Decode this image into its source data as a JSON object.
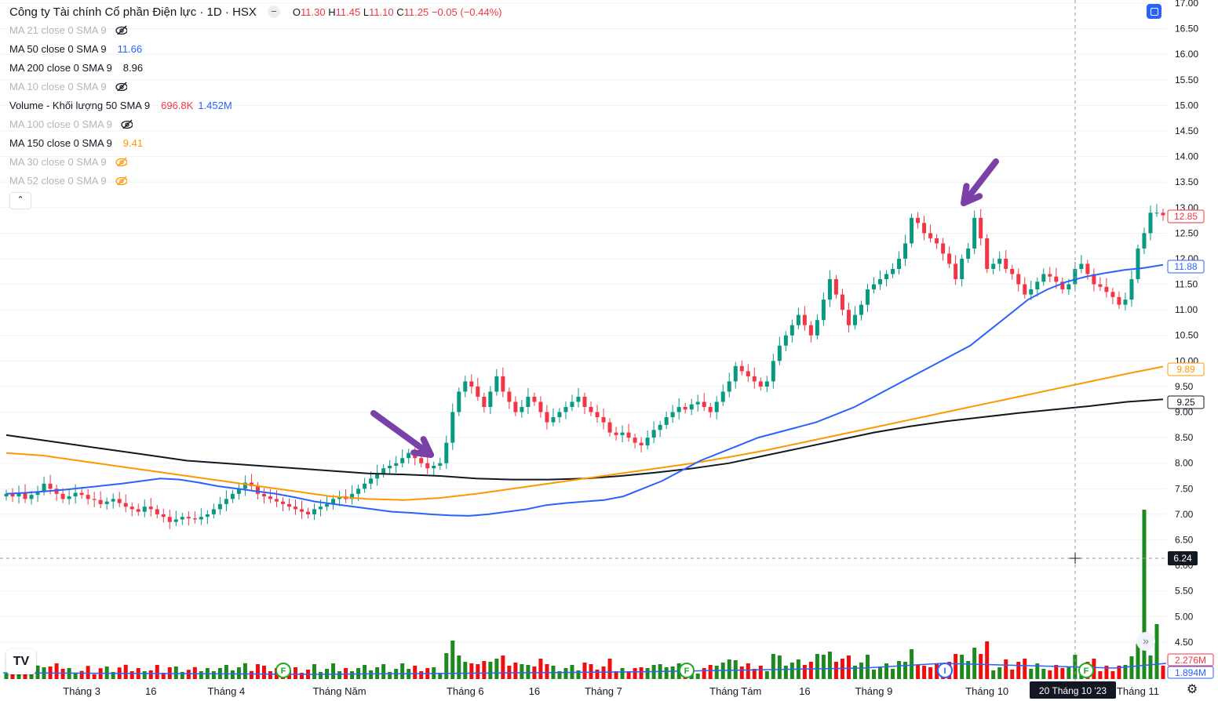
{
  "header": {
    "title": "Công ty Tài chính Cổ phần Điện lực · 1D · HSX",
    "ohlc": {
      "o_label": "O",
      "o": "11.30",
      "h_label": "H",
      "h": "11.45",
      "l_label": "L",
      "l": "11.10",
      "c_label": "C",
      "c": "11.25",
      "change": "−0.05 (−0.44%)"
    }
  },
  "legend": [
    {
      "label": "MA 21 close 0 SMA 9",
      "value": "",
      "hidden": true,
      "color": "#b2b5be"
    },
    {
      "label": "MA 50 close 0 SMA 9",
      "value": "11.66",
      "hidden": false,
      "color": "#2962ff"
    },
    {
      "label": "MA 200 close 0 SMA 9",
      "value": "8.96",
      "hidden": false,
      "color": "#131722"
    },
    {
      "label": "MA 10 close 0 SMA 9",
      "value": "",
      "hidden": true,
      "color": "#b2b5be"
    },
    {
      "label": "Volume - Khối lượng 50 SMA 9",
      "value": "696.8K",
      "value2": "1.452M",
      "hidden": false,
      "color": "#f23645",
      "color2": "#2962ff"
    },
    {
      "label": "MA 100 close 0 SMA 9",
      "value": "",
      "hidden": true,
      "color": "#b2b5be"
    },
    {
      "label": "MA 150 close 0 SMA 9",
      "value": "9.41",
      "hidden": false,
      "color": "#ff9800"
    },
    {
      "label": "MA 30 close 0 SMA 9",
      "value": "",
      "hidden": true,
      "color": "#ff9800"
    },
    {
      "label": "MA 52 close 0 SMA 9",
      "value": "",
      "hidden": true,
      "color": "#ff9800"
    }
  ],
  "crosshair": {
    "price_label": "6.24",
    "date_label": "20 Tháng 10 '23"
  },
  "price_badges": [
    {
      "value": "12.85",
      "color": "#f23645"
    },
    {
      "value": "11.88",
      "color": "#2962ff"
    },
    {
      "value": "9.89",
      "color": "#ff9800"
    },
    {
      "value": "9.25",
      "color": "#131722"
    }
  ],
  "volume_badges": [
    {
      "value": "2.276M",
      "color": "#f23645"
    },
    {
      "value": "1.894M",
      "color": "#2962ff"
    }
  ],
  "event_markers": [
    "F",
    "F",
    "I",
    "F"
  ],
  "chart_data": {
    "type": "candlestick",
    "title": "Công ty Tài chính Cổ phần Điện lực · 1D · HSX",
    "ylim": [
      3.9,
      17.0
    ],
    "y_ticks": [
      "17.00",
      "16.50",
      "16.00",
      "15.50",
      "15.00",
      "14.50",
      "14.00",
      "13.50",
      "13.00",
      "12.50",
      "12.00",
      "11.50",
      "11.00",
      "10.50",
      "10.00",
      "9.50",
      "9.00",
      "8.50",
      "8.00",
      "7.50",
      "7.00",
      "6.50",
      "6.00",
      "5.50",
      "5.00",
      "4.50"
    ],
    "x_ticks": [
      "Tháng 3",
      "16",
      "Tháng 4",
      "Tháng Năm",
      "Tháng 6",
      "16",
      "Tháng 7",
      "Tháng Tám",
      "16",
      "Tháng 9",
      "Tháng 10",
      "Tháng 11"
    ],
    "x_tick_index": [
      12,
      23,
      35,
      53,
      73,
      84,
      95,
      116,
      127,
      138,
      156,
      180
    ],
    "closes": [
      7.4,
      7.35,
      7.42,
      7.3,
      7.38,
      7.45,
      7.6,
      7.5,
      7.4,
      7.3,
      7.35,
      7.42,
      7.38,
      7.3,
      7.28,
      7.2,
      7.25,
      7.3,
      7.22,
      7.15,
      7.1,
      7.05,
      7.15,
      7.1,
      7.0,
      6.95,
      6.85,
      6.9,
      6.95,
      6.92,
      6.9,
      6.95,
      7.0,
      7.1,
      7.2,
      7.3,
      7.4,
      7.5,
      7.62,
      7.55,
      7.4,
      7.35,
      7.3,
      7.25,
      7.2,
      7.15,
      7.1,
      7.05,
      7.0,
      7.1,
      7.15,
      7.2,
      7.3,
      7.35,
      7.3,
      7.4,
      7.5,
      7.6,
      7.7,
      7.8,
      7.9,
      7.95,
      8.0,
      8.1,
      8.2,
      8.1,
      8.0,
      7.9,
      7.95,
      8.0,
      8.4,
      9.0,
      9.4,
      9.6,
      9.5,
      9.3,
      9.1,
      9.4,
      9.7,
      9.4,
      9.2,
      9.0,
      9.1,
      9.3,
      9.2,
      9.0,
      8.8,
      8.9,
      9.0,
      9.1,
      9.2,
      9.3,
      9.1,
      9.0,
      8.9,
      8.8,
      8.6,
      8.55,
      8.6,
      8.5,
      8.4,
      8.35,
      8.5,
      8.65,
      8.75,
      8.9,
      9.0,
      9.1,
      9.05,
      9.15,
      9.2,
      9.1,
      9.0,
      9.2,
      9.4,
      9.6,
      9.9,
      9.8,
      9.7,
      9.6,
      9.5,
      9.6,
      10.0,
      10.3,
      10.5,
      10.7,
      10.9,
      10.7,
      10.5,
      10.8,
      11.2,
      11.6,
      11.3,
      11.0,
      10.7,
      10.9,
      11.1,
      11.4,
      11.5,
      11.6,
      11.7,
      11.8,
      12.0,
      12.3,
      12.8,
      12.7,
      12.5,
      12.4,
      12.3,
      12.1,
      11.9,
      11.6,
      12.0,
      12.2,
      12.8,
      12.4,
      11.8,
      11.9,
      12.0,
      11.8,
      11.7,
      11.5,
      11.3,
      11.4,
      11.55,
      11.7,
      11.65,
      11.55,
      11.4,
      11.5,
      11.8,
      11.9,
      11.7,
      11.5,
      11.45,
      11.35,
      11.25,
      11.1,
      11.2,
      11.6,
      12.2,
      12.5,
      12.9,
      12.9,
      12.85
    ],
    "ma50": [
      7.4,
      7.42,
      7.45,
      7.48,
      7.52,
      7.56,
      7.6,
      7.65,
      7.7,
      7.68,
      7.62,
      7.55,
      7.5,
      7.45,
      7.4,
      7.33,
      7.25,
      7.2,
      7.15,
      7.1,
      7.05,
      7.03,
      7.0,
      6.98,
      6.97,
      7.0,
      7.05,
      7.1,
      7.18,
      7.22,
      7.25,
      7.28,
      7.35,
      7.5,
      7.65,
      7.85,
      8.05,
      8.2,
      8.35,
      8.5,
      8.6,
      8.7,
      8.8,
      8.95,
      9.1,
      9.3,
      9.5,
      9.7,
      9.9,
      10.1,
      10.3,
      10.6,
      10.9,
      11.2,
      11.4,
      11.55,
      11.65,
      11.72,
      11.78,
      11.82,
      11.88
    ],
    "ma150": [
      8.2,
      8.15,
      8.05,
      7.95,
      7.85,
      7.75,
      7.65,
      7.55,
      7.45,
      7.35,
      7.3,
      7.28,
      7.32,
      7.4,
      7.5,
      7.6,
      7.7,
      7.8,
      7.9,
      8.0,
      8.12,
      8.25,
      8.4,
      8.55,
      8.7,
      8.85,
      9.0,
      9.15,
      9.3,
      9.45,
      9.6,
      9.75,
      9.89
    ],
    "ma200": [
      8.55,
      8.45,
      8.35,
      8.25,
      8.15,
      8.05,
      8.0,
      7.95,
      7.9,
      7.85,
      7.8,
      7.78,
      7.75,
      7.7,
      7.68,
      7.68,
      7.7,
      7.75,
      7.82,
      7.9,
      8.0,
      8.15,
      8.3,
      8.45,
      8.6,
      8.72,
      8.82,
      8.9,
      8.98,
      9.05,
      9.12,
      9.2,
      9.25
    ],
    "volume_peak_index": 181,
    "notes": "Candlestick daily chart with MA50 (blue), MA150 (orange), MA200 (black) and volume histogram; two purple arrows point to breakout candles."
  }
}
